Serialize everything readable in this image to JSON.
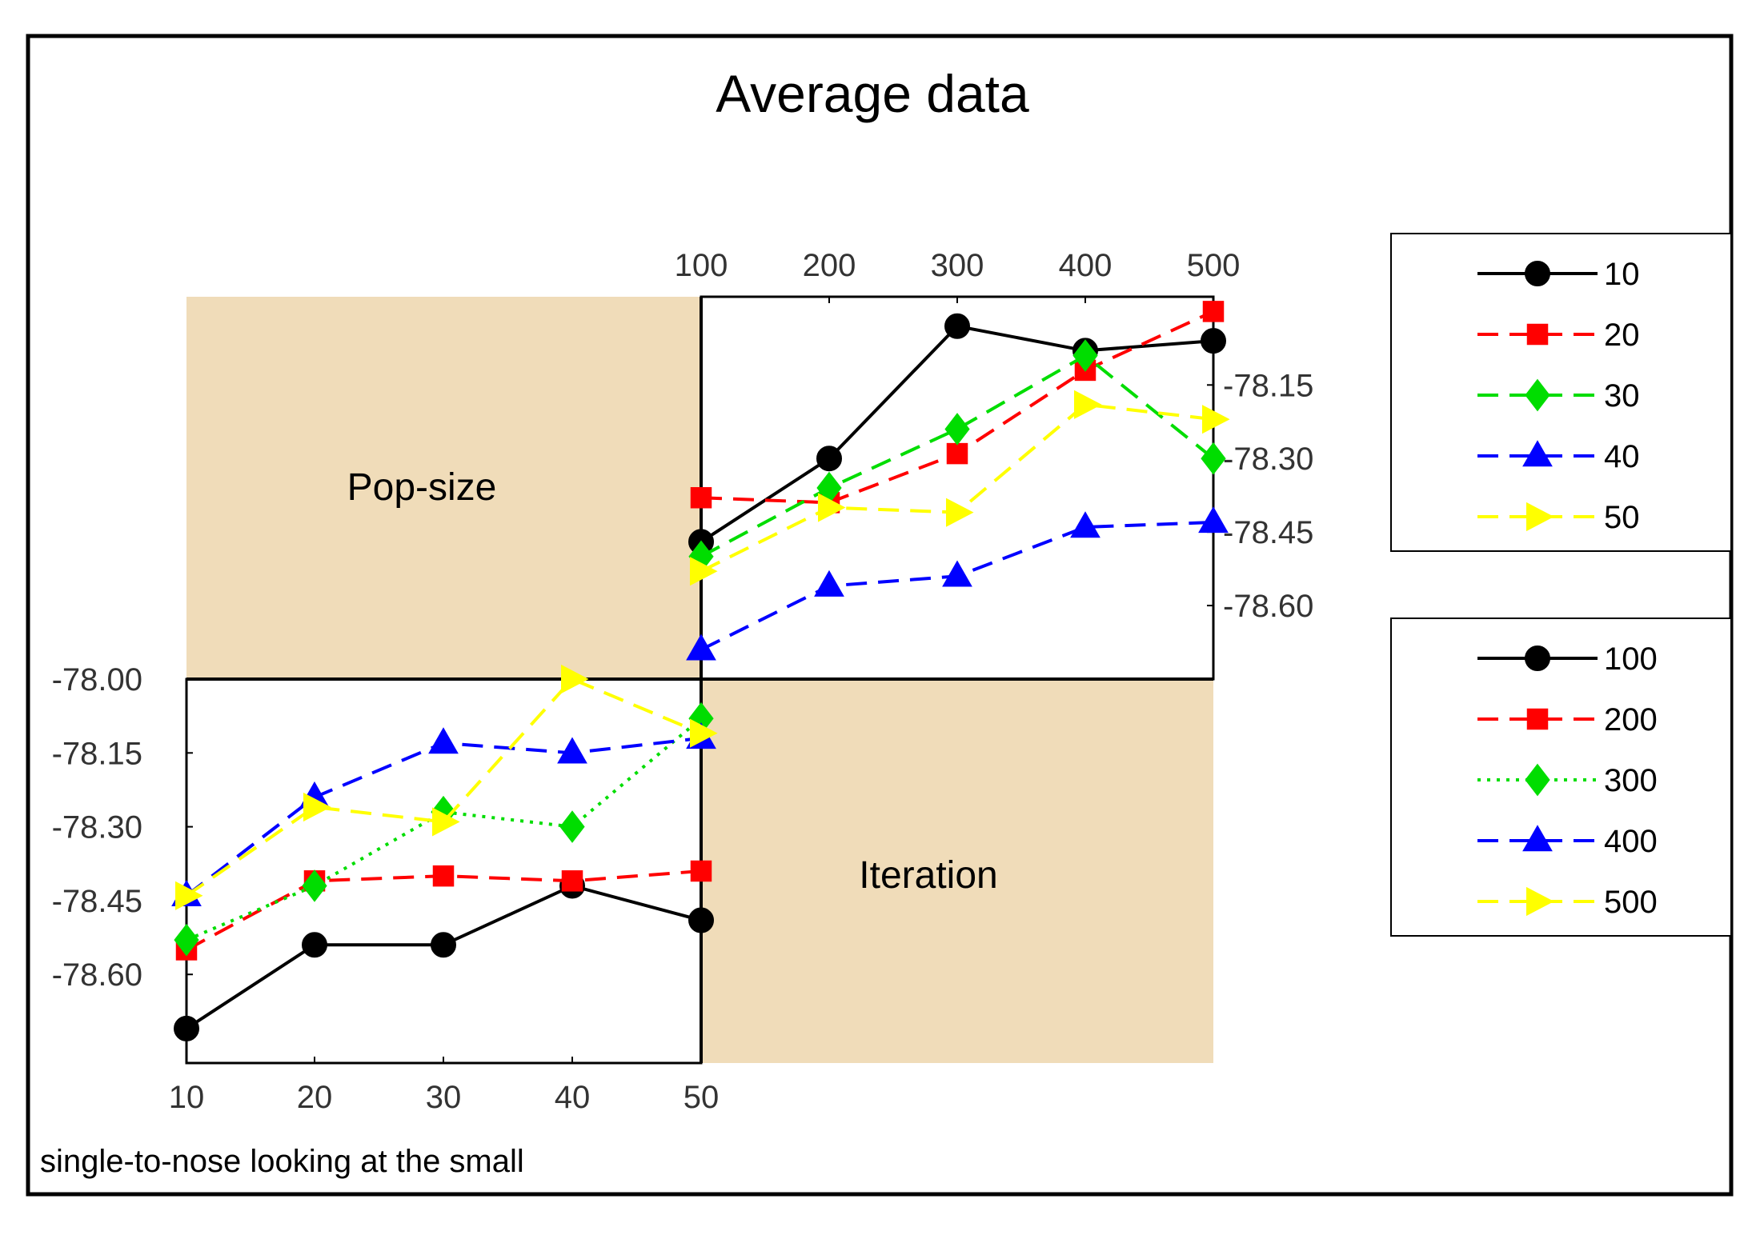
{
  "chart_data": {
    "type": "line",
    "title": "Average data",
    "caption": "single-to-nose looking at the small",
    "colors": {
      "panel_fill": "#f0dcb9",
      "frame": "#000000"
    },
    "panels": [
      {
        "id": "pop-size",
        "label": "Pop-size",
        "x_label_title": "Pop-size",
        "x": [
          100,
          200,
          300,
          400,
          500
        ],
        "y_ticks": [
          "-78.15",
          "-78.30",
          "-78.45",
          "-78.60"
        ],
        "y_tick_values": [
          -78.15,
          -78.3,
          -78.45,
          -78.6
        ],
        "ylim": [
          -78.75,
          -77.97
        ],
        "series": [
          {
            "name": "10",
            "color": "#000000",
            "dash": "solid",
            "marker": "circle",
            "values": [
              -78.47,
              -78.3,
              -78.03,
              -78.08,
              -78.06
            ]
          },
          {
            "name": "20",
            "color": "#ff0000",
            "dash": "dashed",
            "marker": "square",
            "values": [
              -78.38,
              -78.39,
              -78.29,
              -78.12,
              -78.0
            ]
          },
          {
            "name": "30",
            "color": "#00dd00",
            "dash": "dashed",
            "marker": "diamond",
            "values": [
              -78.5,
              -78.36,
              -78.24,
              -78.09,
              -78.3
            ]
          },
          {
            "name": "40",
            "color": "#0000ff",
            "dash": "dashed",
            "marker": "triangle-up",
            "values": [
              -78.69,
              -78.56,
              -78.54,
              -78.44,
              -78.43
            ]
          },
          {
            "name": "50",
            "color": "#ffff00",
            "dash": "dashed",
            "marker": "triangle-right",
            "values": [
              -78.53,
              -78.4,
              -78.41,
              -78.19,
              -78.22
            ]
          }
        ]
      },
      {
        "id": "iteration",
        "label": "Iteration",
        "x": [
          10,
          20,
          30,
          40,
          50
        ],
        "y_ticks": [
          "-78.00",
          "-78.15",
          "-78.30",
          "-78.45",
          "-78.60"
        ],
        "y_tick_values": [
          -78.0,
          -78.15,
          -78.3,
          -78.45,
          -78.6
        ],
        "ylim": [
          -78.78,
          -78.0
        ],
        "series": [
          {
            "name": "100",
            "color": "#000000",
            "dash": "solid",
            "marker": "circle",
            "values": [
              -78.71,
              -78.54,
              -78.54,
              -78.42,
              -78.49
            ]
          },
          {
            "name": "200",
            "color": "#ff0000",
            "dash": "dashed",
            "marker": "square",
            "values": [
              -78.55,
              -78.41,
              -78.4,
              -78.41,
              -78.39
            ]
          },
          {
            "name": "300",
            "color": "#00dd00",
            "dash": "dotted",
            "marker": "diamond",
            "values": [
              -78.53,
              -78.42,
              -78.27,
              -78.3,
              -78.08
            ]
          },
          {
            "name": "400",
            "color": "#0000ff",
            "dash": "dashed",
            "marker": "triangle-up",
            "values": [
              -78.44,
              -78.24,
              -78.13,
              -78.15,
              -78.12
            ]
          },
          {
            "name": "500",
            "color": "#ffff00",
            "dash": "dashed",
            "marker": "triangle-right",
            "values": [
              -78.44,
              -78.26,
              -78.29,
              -78.0,
              -78.11
            ]
          }
        ]
      }
    ],
    "legends": [
      {
        "position": "right-upper",
        "entries": [
          "10",
          "20",
          "30",
          "40",
          "50"
        ]
      },
      {
        "position": "right-lower",
        "entries": [
          "100",
          "200",
          "300",
          "400",
          "500"
        ]
      }
    ]
  }
}
